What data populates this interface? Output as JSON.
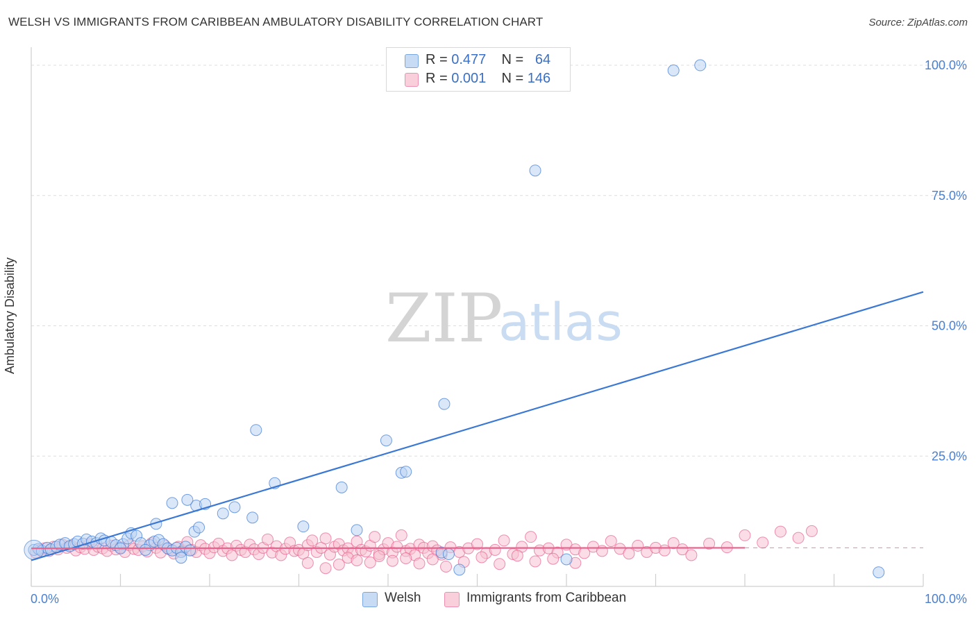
{
  "header": {
    "title": "WELSH VS IMMIGRANTS FROM CARIBBEAN AMBULATORY DISABILITY CORRELATION CHART",
    "source": "Source: ZipAtlas.com"
  },
  "legend": {
    "welsh": {
      "r_label": "R = ",
      "r_value": "0.477",
      "n_label": "N = ",
      "n_value": "64"
    },
    "caribbean": {
      "r_label": "R = ",
      "r_value": "0.001",
      "n_label": "N = ",
      "n_value": "146"
    }
  },
  "bottom_legend": {
    "welsh": "Welsh",
    "caribbean": "Immigrants from Caribbean"
  },
  "watermark": {
    "zip": "ZIP",
    "atlas": "atlas"
  },
  "colors": {
    "blue": "#3a78d4",
    "blue_fill": "#b9d3f3",
    "pink": "#e8638e",
    "pink_fill": "#f6c1d2",
    "grid": "#dddddd"
  },
  "chart_data": {
    "type": "scatter",
    "title": "WELSH VS IMMIGRANTS FROM CARIBBEAN AMBULATORY DISABILITY CORRELATION CHART",
    "xlabel": "",
    "ylabel": "Ambulatory Disability",
    "xlim": [
      0,
      100
    ],
    "ylim": [
      0,
      102
    ],
    "x_tick_labels": [
      "0.0%",
      "100.0%"
    ],
    "y_ticks": [
      25,
      50,
      75,
      100
    ],
    "y_tick_labels": [
      "25.0%",
      "50.0%",
      "75.0%",
      "100.0%"
    ],
    "grid": true,
    "series": [
      {
        "name": "Welsh",
        "trend": {
          "x": [
            0,
            100
          ],
          "y": [
            5.0,
            56.5
          ]
        },
        "points": [
          [
            0.3,
            7.0
          ],
          [
            0.8,
            7.2
          ],
          [
            1.2,
            6.8
          ],
          [
            1.8,
            7.4
          ],
          [
            2.2,
            7.1
          ],
          [
            2.8,
            7.6
          ],
          [
            3.2,
            8.0
          ],
          [
            3.8,
            8.3
          ],
          [
            4.3,
            7.7
          ],
          [
            4.8,
            8.1
          ],
          [
            5.2,
            8.6
          ],
          [
            5.8,
            8.2
          ],
          [
            6.2,
            9.0
          ],
          [
            6.8,
            8.6
          ],
          [
            7.3,
            8.3
          ],
          [
            7.8,
            9.2
          ],
          [
            8.2,
            8.8
          ],
          [
            9.0,
            8.5
          ],
          [
            9.5,
            7.9
          ],
          [
            10.3,
            8.1
          ],
          [
            10.8,
            9.2
          ],
          [
            11.2,
            10.2
          ],
          [
            11.8,
            9.7
          ],
          [
            12.3,
            8.3
          ],
          [
            13.3,
            7.9
          ],
          [
            13.8,
            8.6
          ],
          [
            14.3,
            8.9
          ],
          [
            14.8,
            8.1
          ],
          [
            15.3,
            7.3
          ],
          [
            15.8,
            6.9
          ],
          [
            16.3,
            7.4
          ],
          [
            16.8,
            6.6
          ],
          [
            17.3,
            7.6
          ],
          [
            17.8,
            6.9
          ],
          [
            18.3,
            10.5
          ],
          [
            18.8,
            11.3
          ],
          [
            14.0,
            12.0
          ],
          [
            18.5,
            15.5
          ],
          [
            15.8,
            16.0
          ],
          [
            17.5,
            16.6
          ],
          [
            19.5,
            15.8
          ],
          [
            21.5,
            14.0
          ],
          [
            22.8,
            15.2
          ],
          [
            24.8,
            13.2
          ],
          [
            27.3,
            19.8
          ],
          [
            30.5,
            11.5
          ],
          [
            34.8,
            19.0
          ],
          [
            36.5,
            10.8
          ],
          [
            39.8,
            28.0
          ],
          [
            25.2,
            30.0
          ],
          [
            41.5,
            21.8
          ],
          [
            42.0,
            22.0
          ],
          [
            46.3,
            35.0
          ],
          [
            46.0,
            6.5
          ],
          [
            46.8,
            6.2
          ],
          [
            48.0,
            3.2
          ],
          [
            60.0,
            5.2
          ],
          [
            75.0,
            100.0
          ],
          [
            72.0,
            99.0
          ],
          [
            56.5,
            79.8
          ],
          [
            95.0,
            2.7
          ],
          [
            10.0,
            7.3
          ],
          [
            12.8,
            7.0
          ],
          [
            16.8,
            5.5
          ]
        ]
      },
      {
        "name": "Immigrants from Caribbean",
        "trend": {
          "x": [
            0,
            80
          ],
          "y": [
            7.3,
            7.4
          ]
        },
        "dash_tail": {
          "x": [
            80,
            100
          ],
          "y": [
            7.4,
            7.4
          ]
        },
        "points": [
          [
            0.5,
            6.5
          ],
          [
            1.0,
            7.0
          ],
          [
            1.5,
            7.3
          ],
          [
            2.0,
            6.8
          ],
          [
            2.5,
            7.6
          ],
          [
            3.0,
            7.1
          ],
          [
            3.5,
            8.0
          ],
          [
            4.0,
            7.4
          ],
          [
            4.5,
            7.8
          ],
          [
            5.0,
            6.9
          ],
          [
            5.5,
            7.5
          ],
          [
            6.0,
            7.2
          ],
          [
            6.5,
            8.1
          ],
          [
            7.0,
            7.0
          ],
          [
            7.5,
            7.6
          ],
          [
            8.0,
            7.3
          ],
          [
            8.5,
            6.8
          ],
          [
            9.0,
            7.8
          ],
          [
            9.5,
            7.1
          ],
          [
            10.0,
            7.5
          ],
          [
            10.5,
            6.6
          ],
          [
            11.0,
            7.9
          ],
          [
            11.5,
            7.2
          ],
          [
            12.0,
            7.0
          ],
          [
            12.5,
            7.7
          ],
          [
            13.0,
            6.7
          ],
          [
            13.5,
            8.3
          ],
          [
            14.0,
            7.4
          ],
          [
            14.5,
            6.5
          ],
          [
            15.0,
            7.8
          ],
          [
            15.5,
            7.1
          ],
          [
            16.0,
            6.3
          ],
          [
            16.5,
            7.6
          ],
          [
            17.0,
            6.9
          ],
          [
            17.5,
            8.5
          ],
          [
            18.0,
            7.0
          ],
          [
            18.5,
            6.6
          ],
          [
            19.0,
            7.9
          ],
          [
            19.5,
            7.2
          ],
          [
            20.0,
            6.4
          ],
          [
            20.5,
            7.5
          ],
          [
            21.0,
            8.2
          ],
          [
            21.5,
            6.8
          ],
          [
            22.0,
            7.3
          ],
          [
            22.5,
            6.0
          ],
          [
            23.0,
            7.8
          ],
          [
            23.5,
            7.0
          ],
          [
            24.0,
            6.6
          ],
          [
            24.5,
            8.0
          ],
          [
            25.0,
            7.1
          ],
          [
            25.5,
            6.2
          ],
          [
            26.0,
            7.4
          ],
          [
            26.5,
            9.0
          ],
          [
            27.0,
            6.5
          ],
          [
            27.5,
            7.7
          ],
          [
            28.0,
            6.0
          ],
          [
            28.5,
            7.2
          ],
          [
            29.0,
            8.4
          ],
          [
            29.5,
            6.8
          ],
          [
            30.0,
            7.0
          ],
          [
            30.5,
            6.3
          ],
          [
            31.0,
            7.9
          ],
          [
            31.5,
            8.8
          ],
          [
            32.0,
            6.6
          ],
          [
            32.5,
            7.4
          ],
          [
            33.0,
            9.2
          ],
          [
            33.5,
            6.1
          ],
          [
            34.0,
            7.6
          ],
          [
            34.5,
            8.1
          ],
          [
            35.0,
            6.9
          ],
          [
            35.5,
            7.3
          ],
          [
            36.0,
            6.4
          ],
          [
            36.5,
            8.6
          ],
          [
            37.0,
            7.0
          ],
          [
            37.5,
            6.7
          ],
          [
            38.0,
            7.8
          ],
          [
            38.5,
            9.5
          ],
          [
            39.0,
            6.2
          ],
          [
            39.5,
            7.1
          ],
          [
            40.0,
            8.3
          ],
          [
            40.5,
            6.5
          ],
          [
            41.0,
            7.6
          ],
          [
            41.5,
            9.8
          ],
          [
            42.0,
            6.8
          ],
          [
            42.5,
            7.2
          ],
          [
            43.0,
            6.0
          ],
          [
            43.5,
            8.0
          ],
          [
            44.0,
            7.4
          ],
          [
            44.5,
            6.4
          ],
          [
            45.0,
            7.7
          ],
          [
            45.5,
            6.9
          ],
          [
            46.0,
            6.1
          ],
          [
            47.0,
            7.5
          ],
          [
            48.0,
            6.6
          ],
          [
            49.0,
            7.3
          ],
          [
            50.0,
            8.1
          ],
          [
            51.0,
            6.4
          ],
          [
            52.0,
            7.0
          ],
          [
            53.0,
            8.8
          ],
          [
            54.0,
            6.2
          ],
          [
            55.0,
            7.6
          ],
          [
            56.0,
            9.5
          ],
          [
            57.0,
            6.9
          ],
          [
            58.0,
            7.3
          ],
          [
            59.0,
            6.5
          ],
          [
            60.0,
            8.0
          ],
          [
            61.0,
            7.1
          ],
          [
            62.0,
            6.4
          ],
          [
            63.0,
            7.6
          ],
          [
            64.0,
            6.8
          ],
          [
            65.0,
            8.7
          ],
          [
            66.0,
            7.2
          ],
          [
            67.0,
            6.3
          ],
          [
            68.0,
            7.8
          ],
          [
            69.0,
            6.6
          ],
          [
            70.0,
            7.4
          ],
          [
            71.0,
            6.9
          ],
          [
            72.0,
            8.3
          ],
          [
            73.0,
            7.1
          ],
          [
            74.0,
            6.0
          ],
          [
            76.0,
            8.2
          ],
          [
            78.0,
            7.5
          ],
          [
            80.0,
            9.8
          ],
          [
            82.0,
            8.4
          ],
          [
            84.0,
            10.5
          ],
          [
            86.0,
            9.3
          ],
          [
            87.5,
            10.6
          ],
          [
            31.0,
            4.5
          ],
          [
            33.0,
            3.5
          ],
          [
            34.5,
            4.2
          ],
          [
            35.5,
            5.5
          ],
          [
            36.5,
            5.0
          ],
          [
            38.0,
            4.6
          ],
          [
            39.0,
            5.8
          ],
          [
            40.5,
            4.9
          ],
          [
            42.0,
            5.4
          ],
          [
            43.5,
            4.4
          ],
          [
            45.0,
            5.2
          ],
          [
            46.5,
            3.8
          ],
          [
            48.5,
            4.7
          ],
          [
            50.5,
            5.6
          ],
          [
            52.5,
            4.3
          ],
          [
            54.5,
            5.9
          ],
          [
            56.5,
            4.8
          ],
          [
            58.5,
            5.3
          ],
          [
            61.0,
            4.5
          ]
        ]
      }
    ]
  }
}
